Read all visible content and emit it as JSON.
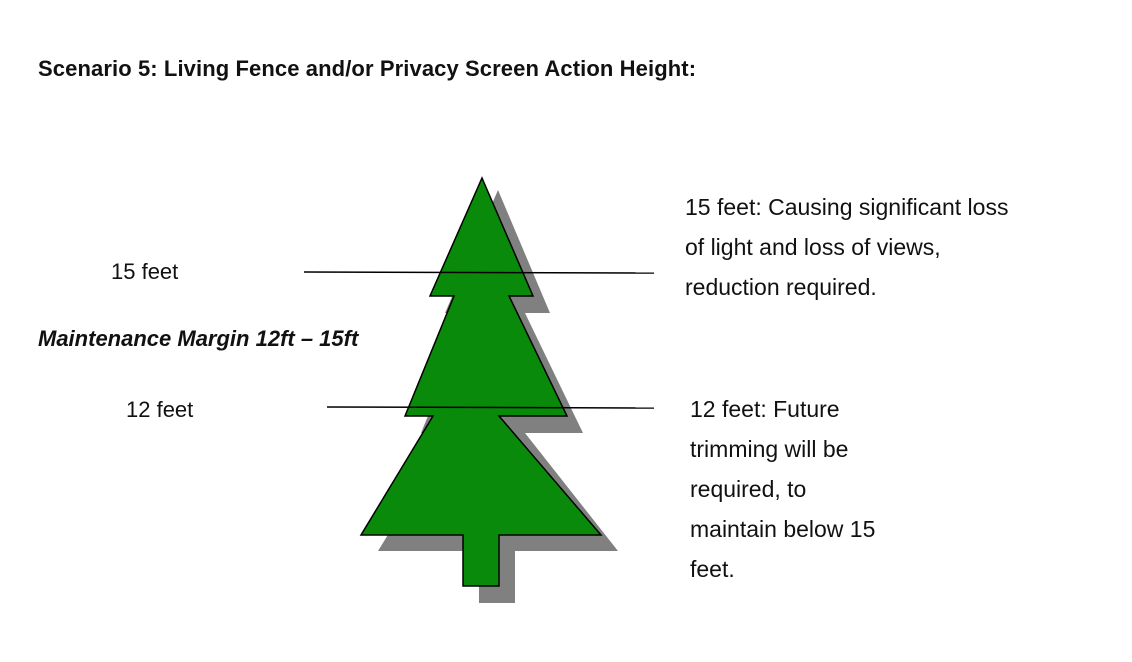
{
  "title": "Scenario 5: Living Fence and/or Privacy Screen Action Height:",
  "labels": {
    "fifteen": "15 feet",
    "twelve": "12 feet",
    "maintenance_margin": "Maintenance Margin 12ft – 15ft"
  },
  "notes": {
    "fifteen": [
      "15 feet: Causing significant loss",
      "of light and loss of views,",
      "reduction required."
    ],
    "twelve": [
      "12 feet: Future",
      "trimming will be",
      "required, to",
      "maintain below 15",
      "feet."
    ]
  },
  "colors": {
    "tree_fill": "#0a8a0a",
    "tree_shadow": "#808080",
    "outline": "#000000"
  }
}
